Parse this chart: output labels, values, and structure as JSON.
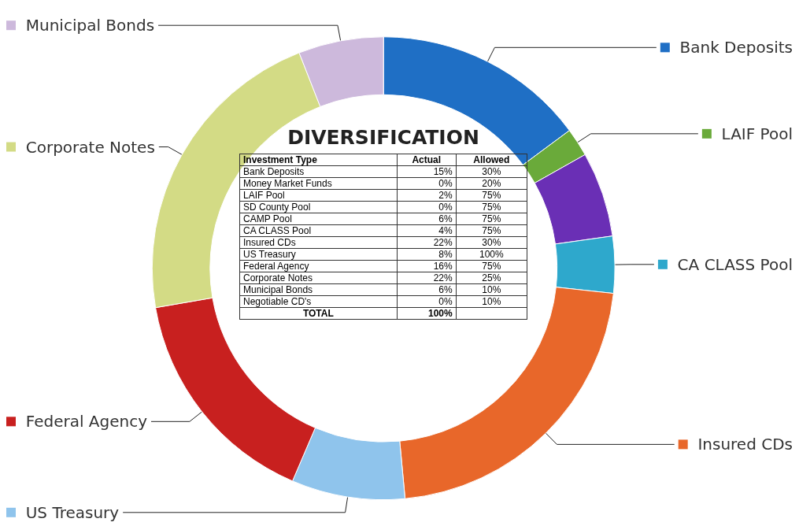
{
  "chart_data": [
    {
      "type": "donut",
      "categories": [
        "Bank Deposits",
        "LAIF Pool",
        null,
        "CA CLASS Pool",
        "Insured CDs",
        "US Treasury",
        "Federal Agency",
        "Corporate Notes",
        "Municipal Bonds"
      ],
      "values": [
        15,
        2,
        6,
        4,
        22,
        8,
        16,
        22,
        6
      ],
      "colors": [
        "#1f6fc5",
        "#6aaa3a",
        "#6a2fb5",
        "#2ea8cc",
        "#e8672a",
        "#8fc4ec",
        "#c8201f",
        "#d3db85",
        "#cdb9dc"
      ],
      "legend": "right"
    },
    {
      "type": "other",
      "title": "DIVERSIFICATION",
      "ylabel": "Investment Type",
      "categories": [
        "Actual",
        "Allowed"
      ],
      "y_categories": [
        "Bank Deposits",
        "Money Market Funds",
        "LAIF Pool",
        "SD County Pool",
        "CAMP Pool",
        "CA CLASS Pool",
        "Insured CDs",
        "US Treasury",
        "Federal Agency",
        "Corporate Notes",
        "Municipal Bonds",
        "Negotiable CD's",
        "TOTAL"
      ],
      "cell_labels": [
        [
          "15%",
          "30%"
        ],
        [
          "0%",
          "20%"
        ],
        [
          "2%",
          "75%"
        ],
        [
          "0%",
          "75%"
        ],
        [
          "6%",
          "75%"
        ],
        [
          "4%",
          "75%"
        ],
        [
          "22%",
          "30%"
        ],
        [
          "8%",
          "100%"
        ],
        [
          "16%",
          "75%"
        ],
        [
          "22%",
          "25%"
        ],
        [
          "6%",
          "10%"
        ],
        [
          "0%",
          "10%"
        ],
        [
          "100%",
          null
        ]
      ]
    }
  ]
}
